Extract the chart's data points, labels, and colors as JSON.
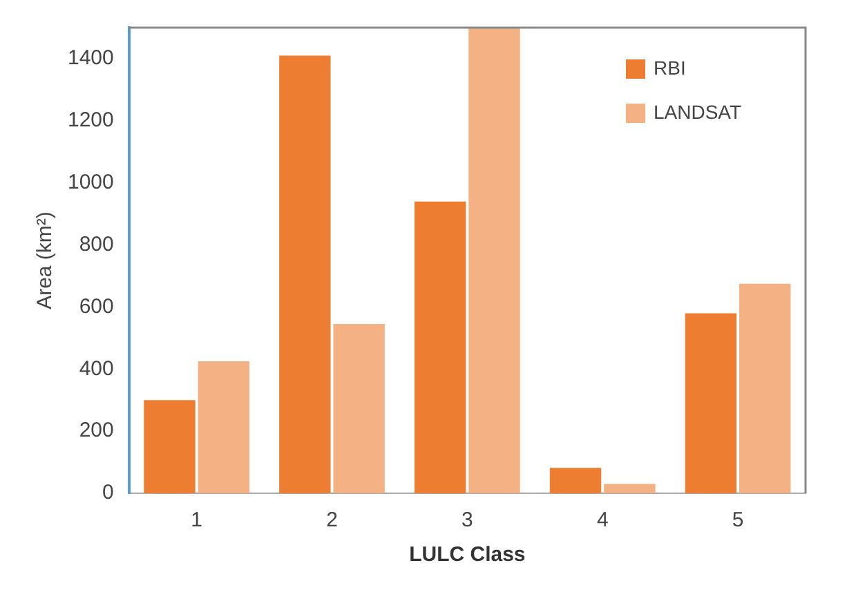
{
  "chart_data": {
    "type": "bar",
    "xlabel": "LULC Class",
    "ylabel": "Area (km²)",
    "categories": [
      "1",
      "2",
      "3",
      "4",
      "5"
    ],
    "series": [
      {
        "name": "RBI",
        "color": "#ed7d31",
        "values": [
          300,
          1410,
          940,
          82,
          580
        ]
      },
      {
        "name": "LANDSAT",
        "color": "#f4b183",
        "values": [
          425,
          545,
          1500,
          30,
          675
        ]
      }
    ],
    "ylim": [
      0,
      1500
    ],
    "yticks": [
      0,
      200,
      400,
      600,
      800,
      1000,
      1200,
      1400
    ],
    "grid": false,
    "legend": "top right"
  }
}
